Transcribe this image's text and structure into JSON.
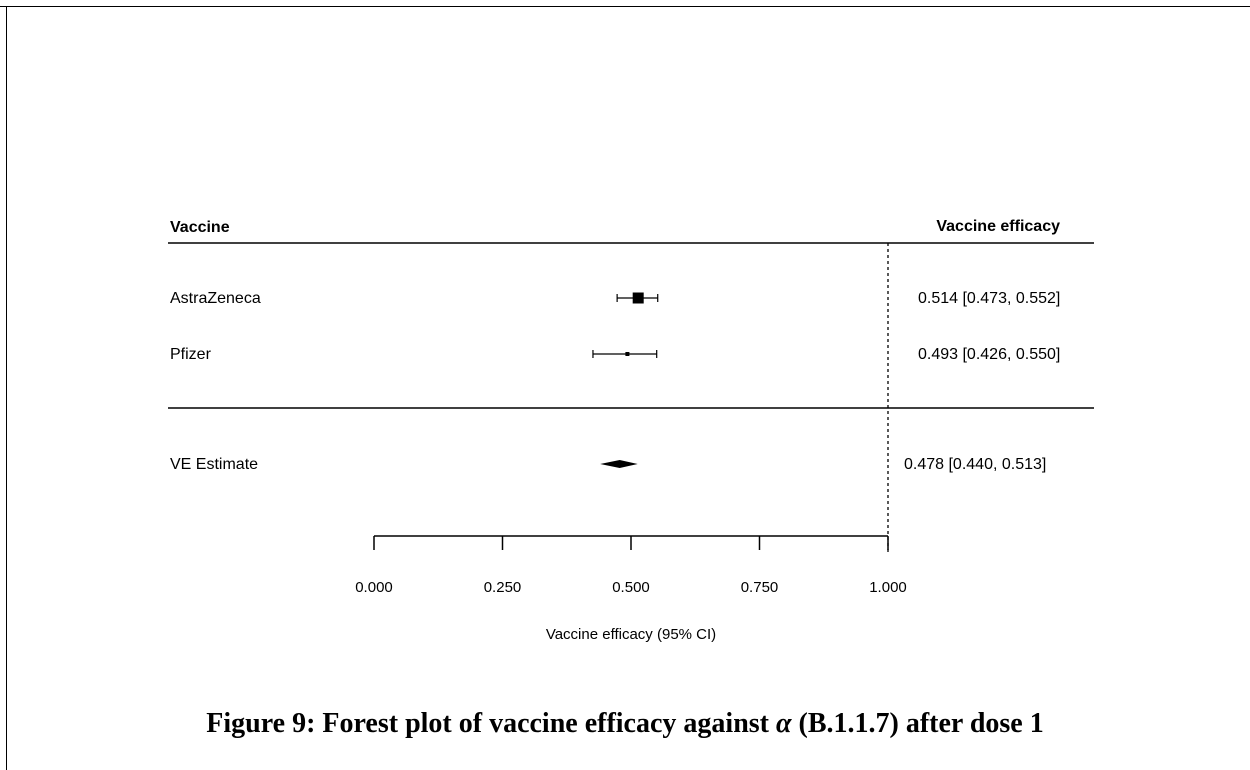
{
  "chart_data": {
    "type": "forest",
    "header_left": "Vaccine",
    "header_right": "Vaccine efficacy",
    "studies": [
      {
        "label": "AstraZeneca",
        "estimate": 0.514,
        "lower": 0.473,
        "upper": 0.552,
        "text": "0.514 [0.473, 0.552]",
        "weight": "large"
      },
      {
        "label": "Pfizer",
        "estimate": 0.493,
        "lower": 0.426,
        "upper": 0.55,
        "text": "0.493 [0.426, 0.550]",
        "weight": "small"
      }
    ],
    "summary": {
      "label": "VE Estimate",
      "estimate": 0.478,
      "lower": 0.44,
      "upper": 0.513,
      "text": "0.478 [0.440, 0.513]"
    },
    "reference_line": 1.0,
    "xlim": [
      0.0,
      1.0
    ],
    "xticks": [
      "0.000",
      "0.250",
      "0.500",
      "0.750",
      "1.000"
    ],
    "xlabel": "Vaccine efficacy (95% CI)"
  },
  "caption": {
    "prefix": "Figure 9: Forest plot of vaccine efficacy against",
    "symbol": "α",
    "suffix": "(B.1.1.7) after dose 1"
  }
}
